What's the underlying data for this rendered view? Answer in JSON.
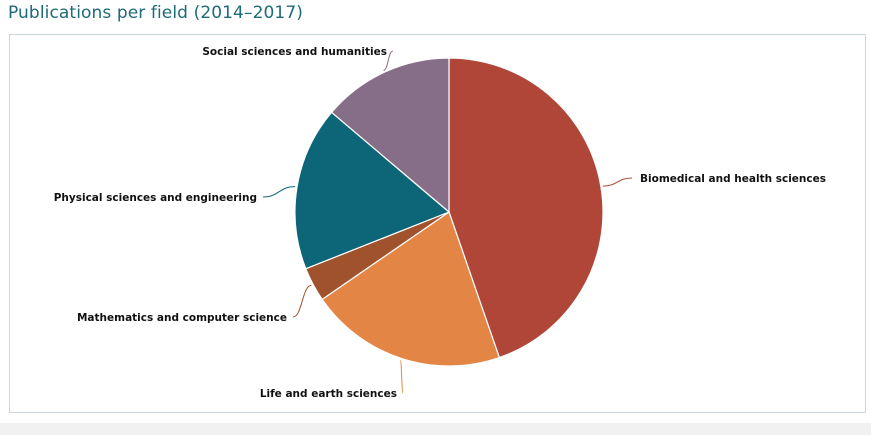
{
  "title": "Publications per field (2014–2017)",
  "chart_data": {
    "type": "pie",
    "title": "Publications per field (2014–2017)",
    "slices": [
      {
        "label": "Biomedical and health sciences",
        "value": 44.7,
        "color": "#b04638"
      },
      {
        "label": "Life and earth sciences",
        "value": 20.7,
        "color": "#e38545"
      },
      {
        "label": "Mathematics and computer science",
        "value": 3.6,
        "color": "#a0522d"
      },
      {
        "label": "Physical sciences and engineering",
        "value": 17.2,
        "color": "#0c6677"
      },
      {
        "label": "Social sciences and humanities",
        "value": 13.8,
        "color": "#876e88"
      }
    ]
  }
}
